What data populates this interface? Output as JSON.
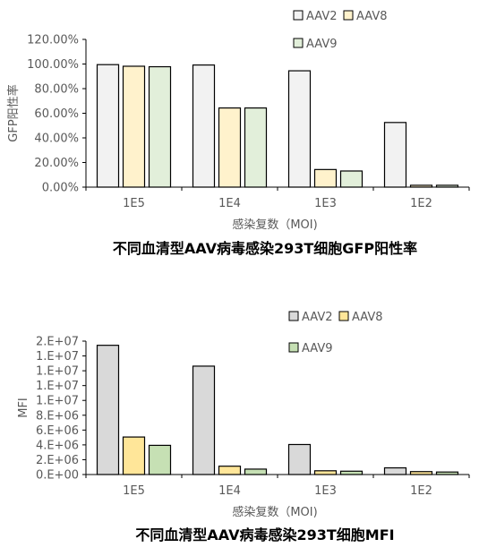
{
  "chart_data": [
    {
      "type": "bar",
      "title": "不同血清型AAV病毒感染293T细胞GFP阳性率",
      "xlabel": "感染复数（MOI)",
      "ylabel": "GFP阳性率",
      "categories": [
        "1E5",
        "1E4",
        "1E3",
        "1E2"
      ],
      "yticks": [
        "0.00%",
        "20.00%",
        "40.00%",
        "60.00%",
        "80.00%",
        "100.00%",
        "120.00%"
      ],
      "ylim": [
        0,
        120
      ],
      "grid": false,
      "legend_position": "top-right",
      "series": [
        {
          "name": "AAV2",
          "values": [
            99.5,
            99.2,
            94.5,
            52.5
          ],
          "color": "#f2f2f2"
        },
        {
          "name": "AAV8",
          "values": [
            98.2,
            64.3,
            14.3,
            1.5
          ],
          "color": "#fff2cc"
        },
        {
          "name": "AAV9",
          "values": [
            97.8,
            64.3,
            13.1,
            1.5
          ],
          "color": "#e2efda"
        }
      ]
    },
    {
      "type": "bar",
      "title": "不同血清型AAV病毒感染293T细胞MFI",
      "xlabel": "感染复数（MOI)",
      "ylabel": "MFI",
      "categories": [
        "1E5",
        "1E4",
        "1E3",
        "1E2"
      ],
      "yticks": [
        "0.E+00",
        "2.E+06",
        "4.E+06",
        "6.E+06",
        "8.E+06",
        "1.E+07",
        "1.E+07",
        "1.E+07",
        "1.E+07",
        "2.E+07"
      ],
      "ylim": [
        0,
        16000000
      ],
      "grid": false,
      "legend_position": "top-right",
      "series": [
        {
          "name": "AAV2",
          "values": [
            15500000,
            13000000,
            3600000,
            800000
          ],
          "color": "#d9d9d9"
        },
        {
          "name": "AAV8",
          "values": [
            4500000,
            1000000,
            450000,
            350000
          ],
          "color": "#ffe699"
        },
        {
          "name": "AAV9",
          "values": [
            3500000,
            650000,
            400000,
            300000
          ],
          "color": "#c6e0b4"
        }
      ]
    }
  ]
}
